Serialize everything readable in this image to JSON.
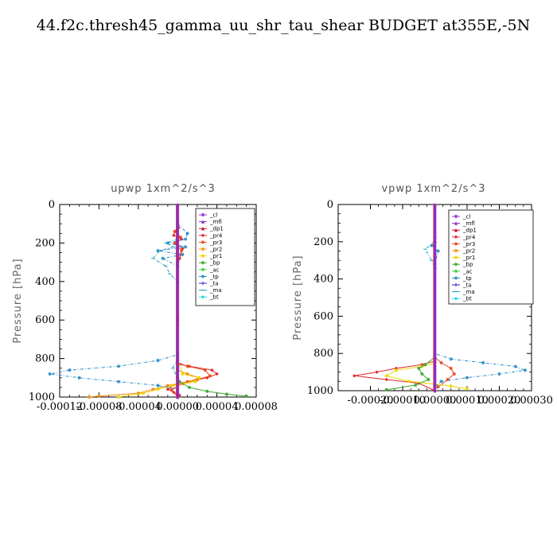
{
  "page": {
    "title": "44.f2c.thresh45_gamma_uu_shr_tau_shear  BUDGET at355E,-5N"
  },
  "legend_series": [
    {
      "name": "_cl",
      "color": "#8c2fc8",
      "marker": "star"
    },
    {
      "name": "_mfl",
      "color": "#8c2fc8",
      "marker": "tri"
    },
    {
      "name": "_dp1",
      "color": "#cc1030",
      "marker": "tri"
    },
    {
      "name": "_pr4",
      "color": "#e02828",
      "marker": "diamond"
    },
    {
      "name": "_pr3",
      "color": "#e84a1c",
      "marker": "star"
    },
    {
      "name": "_pr2",
      "color": "#f08c10",
      "marker": "star"
    },
    {
      "name": "_pr1",
      "color": "#eed400",
      "marker": "star"
    },
    {
      "name": "_bp",
      "color": "#3aa82c",
      "marker": "star"
    },
    {
      "name": "_ac",
      "color": "#40cc40",
      "marker": "star"
    },
    {
      "name": "_tp",
      "color": "#2a8cc8",
      "marker": "star"
    },
    {
      "name": "_ta",
      "color": "#2020c8",
      "marker": "plus"
    },
    {
      "name": "_ma",
      "color": "#20a0c0",
      "marker": "dash"
    },
    {
      "name": "_bt",
      "color": "#20d8e0",
      "marker": "diamond"
    }
  ],
  "chart_data": [
    {
      "type": "line",
      "title": "upwp   1xm^2/s^3",
      "ylabel": "Pressure [hPa]",
      "xlim": [
        -0.00012,
        8e-05
      ],
      "ylim": [
        1000,
        0
      ],
      "xticks": [
        -0.00012,
        -8e-05,
        -4e-05,
        0.0,
        4e-05,
        8e-05
      ],
      "xtick_labels": [
        "-0.00012",
        "-0.00008",
        "-0.00004",
        "0.00000",
        "0.00004",
        "0.00008"
      ],
      "yticks": [
        0,
        200,
        400,
        600,
        800,
        1000
      ],
      "ytick_labels": [
        "0",
        "200",
        "400",
        "600",
        "800",
        "1000"
      ],
      "legend": "top-right inside",
      "series": [
        {
          "name": "_pr4",
          "x": [
            0,
            1e-06,
            -3e-06,
            -4e-06,
            4e-06,
            -2e-06,
            5e-06,
            3e-06,
            2e-06,
            0,
            0,
            0,
            0,
            0,
            0,
            2e-06,
            1.2e-05,
            3.5e-05,
            4e-05,
            3e-05,
            1e-05,
            -5e-06,
            -1e-05,
            -4e-06,
            2e-06,
            0
          ],
          "y": [
            100,
            120,
            140,
            160,
            180,
            200,
            230,
            260,
            280,
            300,
            400,
            600,
            800,
            810,
            820,
            830,
            840,
            860,
            880,
            900,
            920,
            940,
            960,
            975,
            990,
            1000
          ]
        },
        {
          "name": "_pr3",
          "x": [
            0,
            -2e-06,
            3e-06,
            -3e-06,
            4e-06,
            2e-06,
            0,
            0,
            0,
            1e-05,
            2.8e-05,
            3.3e-05,
            2e-05,
            5e-06,
            -6e-06,
            0
          ],
          "y": [
            110,
            140,
            170,
            200,
            240,
            280,
            320,
            600,
            820,
            840,
            860,
            890,
            910,
            930,
            960,
            1000
          ]
        },
        {
          "name": "_pr2",
          "x": [
            0,
            0,
            0,
            1e-05,
            2.2e-05,
            1.2e-05,
            -1e-05,
            -2.5e-05,
            -4e-05,
            -8e-05,
            -9e-05
          ],
          "y": [
            200,
            600,
            860,
            880,
            900,
            920,
            940,
            960,
            980,
            995,
            1000
          ]
        },
        {
          "name": "_pr1",
          "x": [
            0,
            0,
            5e-06,
            2.2e-05,
            1.8e-05,
            -5e-06,
            -2e-05,
            -3.5e-05,
            -6e-05
          ],
          "y": [
            300,
            800,
            880,
            900,
            920,
            940,
            960,
            980,
            1000
          ]
        },
        {
          "name": "_bp",
          "x": [
            0,
            0,
            2e-06,
            1.2e-05,
            3e-05,
            5e-05,
            7e-05
          ],
          "y": [
            300,
            900,
            920,
            950,
            970,
            985,
            995
          ]
        },
        {
          "name": "_tp",
          "x": [
            0,
            1e-05,
            8e-06,
            -1e-05,
            8e-06,
            -2e-05,
            5e-06,
            -1.5e-05,
            0,
            0,
            -2e-05,
            -6e-05,
            -0.00011,
            -0.00013,
            -0.0001,
            -6e-05,
            -2e-05,
            0
          ],
          "y": [
            100,
            150,
            180,
            200,
            220,
            240,
            260,
            280,
            320,
            780,
            810,
            840,
            860,
            880,
            900,
            920,
            940,
            960
          ]
        },
        {
          "name": "_ma",
          "x": [
            0,
            -1.2e-05,
            -4e-06,
            -1.8e-05,
            -2.5e-05,
            -1.2e-05,
            -8e-06,
            0,
            0,
            -5e-06,
            0
          ],
          "y": [
            180,
            200,
            220,
            240,
            280,
            320,
            360,
            400,
            800,
            850,
            900
          ]
        }
      ]
    },
    {
      "type": "line",
      "title": "vpwp   1xm^2/s^3",
      "ylabel": "Pressure [hPa]",
      "xlim": [
        -0.0003,
        0.0003
      ],
      "ylim": [
        1000,
        0
      ],
      "xticks": [
        -0.0002,
        -0.0001,
        0.0,
        0.0001,
        0.0002,
        0.0003
      ],
      "xtick_labels": [
        "-0.00020",
        "-0.00010",
        "0.00000",
        "0.00010",
        "0.00020",
        "0.00030"
      ],
      "yticks": [
        0,
        200,
        400,
        600,
        800,
        1000
      ],
      "ytick_labels": [
        "0",
        "200",
        "400",
        "600",
        "800",
        "1000"
      ],
      "legend": "top-right inside",
      "series": [
        {
          "name": "_pr4",
          "x": [
            0,
            0,
            0,
            0,
            -4e-05,
            -0.00012,
            -0.00018,
            -0.00025,
            -0.00015,
            -5e-05,
            0
          ],
          "y": [
            150,
            800,
            820,
            840,
            860,
            880,
            900,
            920,
            940,
            960,
            1000
          ]
        },
        {
          "name": "_pr3",
          "x": [
            0,
            0,
            2e-05,
            5e-05,
            6e-05,
            4e-05,
            1e-05
          ],
          "y": [
            200,
            820,
            850,
            880,
            910,
            940,
            980
          ]
        },
        {
          "name": "_pr1",
          "x": [
            0,
            -4e-05,
            -0.00012,
            -0.00015,
            -8e-05,
            5e-05,
            0.0001
          ],
          "y": [
            850,
            870,
            890,
            920,
            950,
            975,
            990
          ]
        },
        {
          "name": "_bp",
          "x": [
            0,
            -3e-05,
            -5e-05,
            -4e-05,
            -2e-05,
            -6e-05,
            -0.00015
          ],
          "y": [
            820,
            860,
            880,
            910,
            940,
            970,
            995
          ]
        },
        {
          "name": "_tp",
          "x": [
            0,
            -1e-05,
            1e-05,
            0,
            0,
            5e-05,
            0.00015,
            0.00025,
            0.00028,
            0.0002,
            0.0001,
            2e-05,
            0
          ],
          "y": [
            180,
            220,
            250,
            320,
            800,
            830,
            850,
            870,
            890,
            910,
            930,
            950,
            980
          ]
        },
        {
          "name": "_ma",
          "x": [
            0,
            -3e-05,
            -1e-05,
            0
          ],
          "y": [
            200,
            240,
            300,
            340
          ]
        }
      ]
    }
  ]
}
